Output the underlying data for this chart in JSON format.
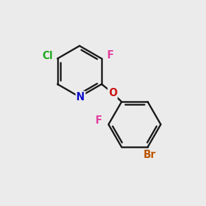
{
  "background_color": "#ebebeb",
  "bond_color": "#1a1a1a",
  "bond_width": 1.8,
  "atom_labels": {
    "N": {
      "color": "#1010cc",
      "fontsize": 10.5
    },
    "O": {
      "color": "#cc1010",
      "fontsize": 10.5
    },
    "F1": {
      "color": "#e040a0",
      "fontsize": 10.5
    },
    "F2": {
      "color": "#e040a0",
      "fontsize": 10.5
    },
    "Cl": {
      "color": "#22aa22",
      "fontsize": 10.5
    },
    "Br": {
      "color": "#bb5500",
      "fontsize": 10.5
    }
  },
  "figsize": [
    3.0,
    3.0
  ],
  "dpi": 100,
  "xlim": [
    0,
    10
  ],
  "ylim": [
    0,
    10
  ]
}
